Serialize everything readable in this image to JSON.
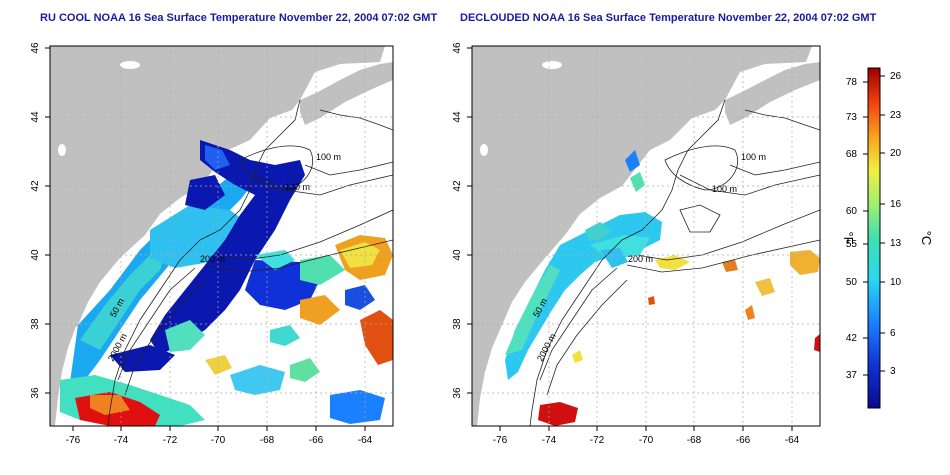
{
  "titles": {
    "left": "RU COOL NOAA 16 Sea Surface Temperature November 22, 2004 07:02 GMT",
    "right": "DECLOUDED NOAA 16 Sea Surface Temperature November 22, 2004 07:02 GMT"
  },
  "axes": {
    "x_ticks": [
      "-76",
      "-74",
      "-72",
      "-70",
      "-68",
      "-66",
      "-64"
    ],
    "y_ticks": [
      "46",
      "44",
      "42",
      "40",
      "38",
      "36"
    ]
  },
  "isobaths": {
    "left": [
      "100 m",
      "100 m",
      "200 m",
      "50 m",
      "2000 m"
    ],
    "right": [
      "100 m",
      "100 m",
      "200 m",
      "50 m",
      "2000 m"
    ]
  },
  "colorbar": {
    "fahrenheit_ticks": [
      "78",
      "73",
      "68",
      "60",
      "55",
      "50",
      "42",
      "37"
    ],
    "celsius_ticks": [
      "26",
      "23",
      "20",
      "16",
      "13",
      "10",
      "6",
      "3"
    ],
    "label_f": "°F",
    "label_c": "°C"
  },
  "colors": {
    "land": "#c0c0c0",
    "title": "#1a1aa0",
    "cold": "#0a1aa8",
    "warm": "#d01010"
  }
}
